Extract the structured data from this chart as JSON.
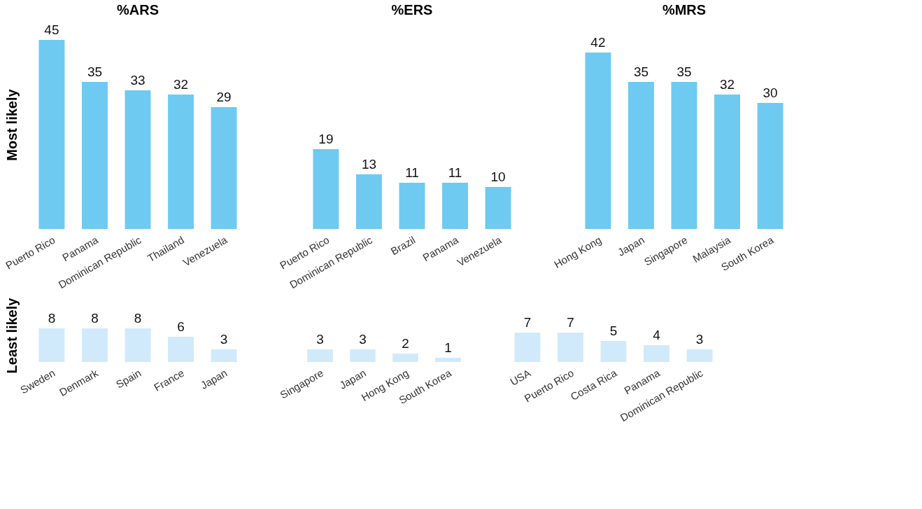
{
  "chart_data": [
    {
      "type": "bar",
      "title": "%ARS",
      "ylabel": "Most likely",
      "categories": [
        "Puerto Rico",
        "Panama",
        "Dominican Republic",
        "Thailand",
        "Venezuela"
      ],
      "values": [
        45,
        35,
        33,
        32,
        29
      ],
      "color": "#6ecaf1",
      "data_labels": true,
      "tick_labels": "x"
    },
    {
      "type": "bar",
      "title": "%ERS",
      "categories": [
        "Puerto Rico",
        "Dominican Republic",
        "Brazil",
        "Panama",
        "Venezuela"
      ],
      "values": [
        19,
        13,
        11,
        11,
        10
      ],
      "color": "#6ecaf1",
      "data_labels": true,
      "tick_labels": "x"
    },
    {
      "type": "bar",
      "title": "%MRS",
      "categories": [
        "Hong Kong",
        "Japan",
        "Singapore",
        "Malaysia",
        "South Korea"
      ],
      "values": [
        42,
        35,
        35,
        32,
        30
      ],
      "color": "#6ecaf1",
      "data_labels": true,
      "tick_labels": "x"
    },
    {
      "type": "bar",
      "ylabel": "Least likely",
      "categories": [
        "Sweden",
        "Denmark",
        "Spain",
        "France",
        "Japan"
      ],
      "values": [
        8,
        8,
        8,
        6,
        3
      ],
      "color": "#d0eafb",
      "data_labels": true,
      "tick_labels": "x"
    },
    {
      "type": "bar",
      "categories": [
        "Singapore",
        "Japan",
        "Hong Kong",
        "South Korea"
      ],
      "values": [
        3,
        3,
        2,
        1
      ],
      "color": "#d0eafb",
      "data_labels": true,
      "tick_labels": "x"
    },
    {
      "type": "bar",
      "categories": [
        "USA",
        "Puerto Rico",
        "Costa Rica",
        "Panama",
        "Dominican Republic"
      ],
      "values": [
        7,
        7,
        5,
        4,
        3
      ],
      "color": "#d0eafb",
      "data_labels": true,
      "tick_labels": "x"
    }
  ]
}
